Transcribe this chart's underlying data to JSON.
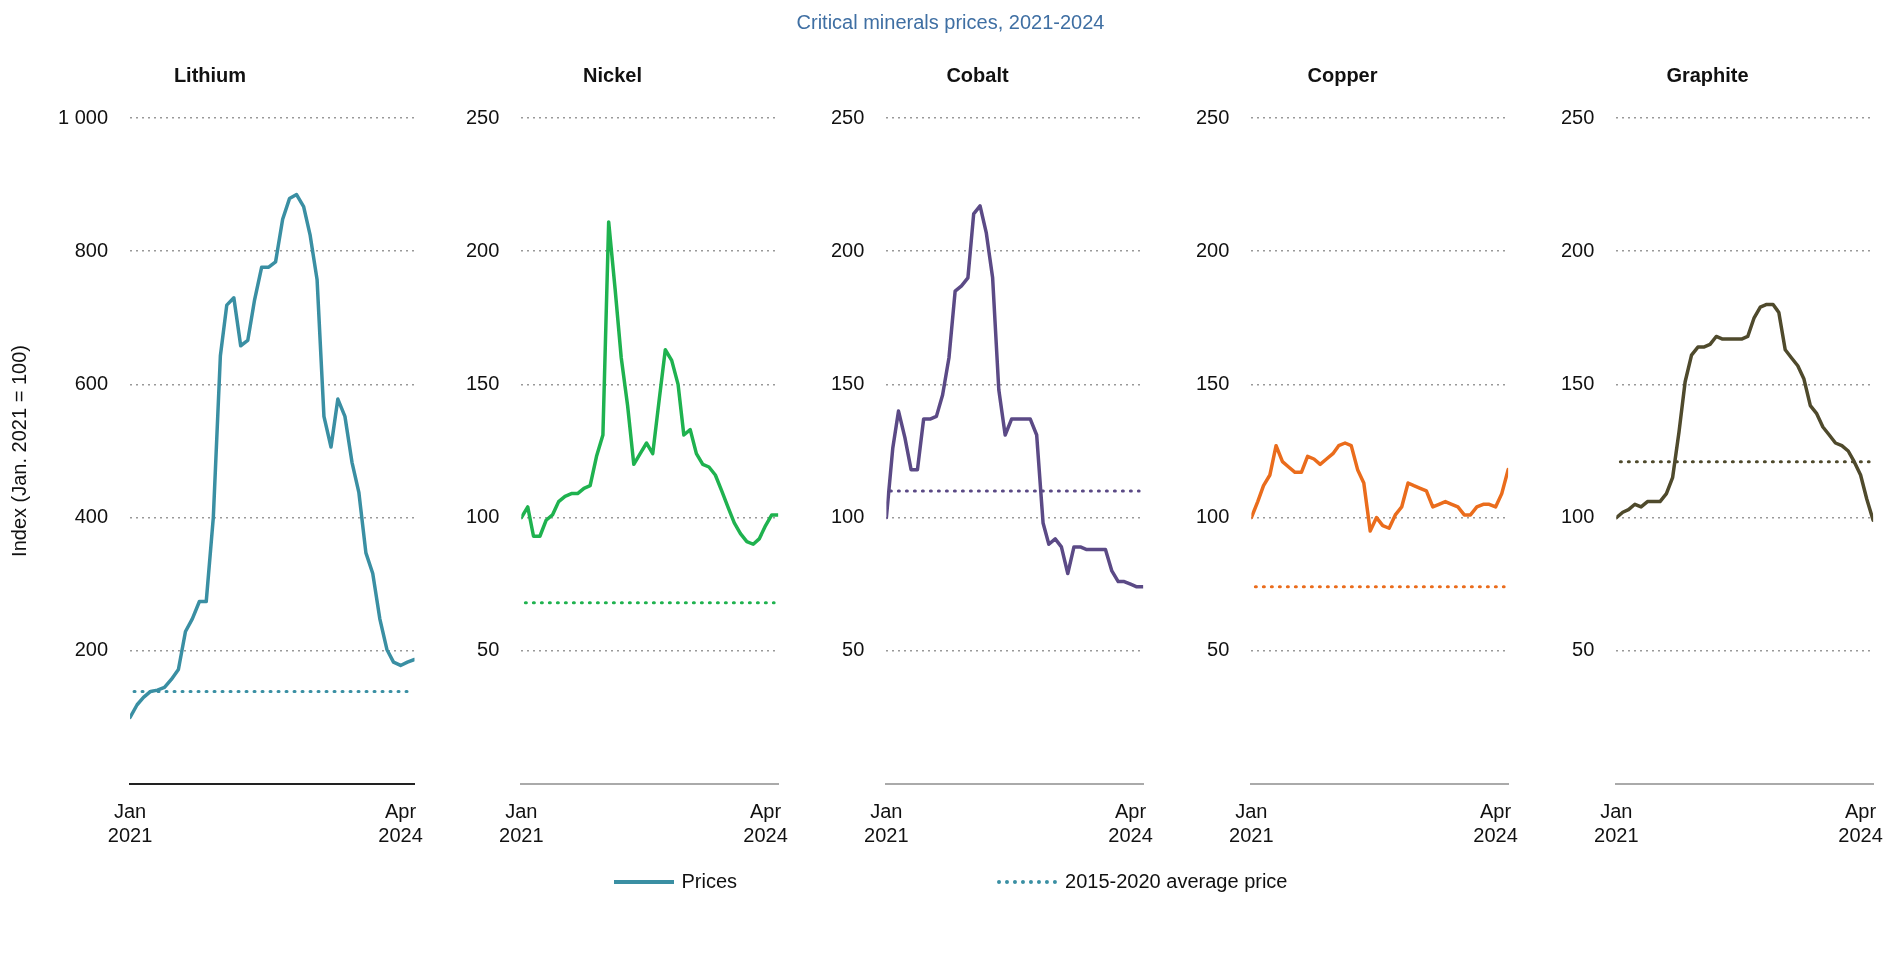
{
  "chart_data": [
    {
      "type": "line",
      "title": "Lithium",
      "ylabel": "Index (Jan. 2021 = 100)",
      "annotations": [
        "Critical minerals prices, 2021-2024"
      ],
      "legend": "bottom",
      "grid": "y",
      "marker": "none",
      "line_style": "solid",
      "x": [
        "2021-01",
        "2021-02",
        "2021-03",
        "2021-04",
        "2021-05",
        "2021-06",
        "2021-07",
        "2021-08",
        "2021-09",
        "2021-10",
        "2021-11",
        "2021-12",
        "2022-01",
        "2022-02",
        "2022-03",
        "2022-04",
        "2022-05",
        "2022-06",
        "2022-07",
        "2022-08",
        "2022-09",
        "2022-10",
        "2022-11",
        "2022-12",
        "2023-01",
        "2023-02",
        "2023-03",
        "2023-04",
        "2023-05",
        "2023-06",
        "2023-07",
        "2023-08",
        "2023-09",
        "2023-10",
        "2023-11",
        "2023-12",
        "2024-01",
        "2024-02",
        "2024-03",
        "2024-04",
        "2024-05",
        "2024-06"
      ],
      "xlim": [
        "2021-01",
        "2024-06"
      ],
      "xticks": [
        {
          "value": "2021-01",
          "label": "Jan 2021"
        },
        {
          "value": "2024-04",
          "label": "Apr 2024"
        }
      ],
      "ylim": [
        0,
        1000
      ],
      "yticks": [
        200,
        400,
        600,
        800,
        {
          "value": 1000,
          "label": "1 000"
        }
      ],
      "series": [
        {
          "name": "Prices",
          "color": "#3a8fa3",
          "values": [
            100,
            119,
            130,
            139,
            141,
            145,
            157,
            172,
            229,
            248,
            274,
            274,
            400,
            643,
            719,
            730,
            658,
            666,
            727,
            776,
            776,
            784,
            848,
            879,
            885,
            867,
            825,
            757,
            552,
            506,
            578,
            552,
            483,
            438,
            347,
            316,
            248,
            202,
            183,
            178,
            183,
            187
          ]
        }
      ],
      "ref_lines": [
        {
          "axis": "y",
          "value": 139,
          "label": "2015-2020 average price",
          "color": "#3a8fa3",
          "line_style": "dotted"
        }
      ]
    },
    {
      "type": "line",
      "title": "Nickel",
      "grid": "y",
      "marker": "none",
      "line_style": "solid",
      "x": [
        "2021-01",
        "2021-02",
        "2021-03",
        "2021-04",
        "2021-05",
        "2021-06",
        "2021-07",
        "2021-08",
        "2021-09",
        "2021-10",
        "2021-11",
        "2021-12",
        "2022-01",
        "2022-02",
        "2022-03",
        "2022-04",
        "2022-05",
        "2022-06",
        "2022-07",
        "2022-08",
        "2022-09",
        "2022-10",
        "2022-11",
        "2022-12",
        "2023-01",
        "2023-02",
        "2023-03",
        "2023-04",
        "2023-05",
        "2023-06",
        "2023-07",
        "2023-08",
        "2023-09",
        "2023-10",
        "2023-11",
        "2023-12",
        "2024-01",
        "2024-02",
        "2024-03",
        "2024-04",
        "2024-05",
        "2024-06"
      ],
      "xlim": [
        "2021-01",
        "2024-06"
      ],
      "xticks": [
        {
          "value": "2021-01",
          "label": "Jan 2021"
        },
        {
          "value": "2024-04",
          "label": "Apr 2024"
        }
      ],
      "ylim": [
        0,
        250
      ],
      "yticks": [
        50,
        100,
        150,
        200,
        250
      ],
      "series": [
        {
          "color": "#1fb24f",
          "values": [
            100,
            104,
            93,
            93,
            99,
            101,
            106,
            108,
            109,
            109,
            111,
            112,
            123,
            131,
            211,
            186,
            160,
            142,
            120,
            124,
            128,
            124,
            144,
            163,
            159,
            150,
            131,
            133,
            124,
            120,
            119,
            116,
            110,
            104,
            98,
            94,
            91,
            90,
            92,
            97,
            101,
            101
          ]
        }
      ],
      "ref_lines": [
        {
          "axis": "y",
          "value": 68,
          "color": "#1fb24f",
          "line_style": "dotted"
        }
      ]
    },
    {
      "type": "line",
      "title": "Cobalt",
      "grid": "y",
      "marker": "none",
      "line_style": "solid",
      "x": [
        "2021-01",
        "2021-02",
        "2021-03",
        "2021-04",
        "2021-05",
        "2021-06",
        "2021-07",
        "2021-08",
        "2021-09",
        "2021-10",
        "2021-11",
        "2021-12",
        "2022-01",
        "2022-02",
        "2022-03",
        "2022-04",
        "2022-05",
        "2022-06",
        "2022-07",
        "2022-08",
        "2022-09",
        "2022-10",
        "2022-11",
        "2022-12",
        "2023-01",
        "2023-02",
        "2023-03",
        "2023-04",
        "2023-05",
        "2023-06",
        "2023-07",
        "2023-08",
        "2023-09",
        "2023-10",
        "2023-11",
        "2023-12",
        "2024-01",
        "2024-02",
        "2024-03",
        "2024-04",
        "2024-05",
        "2024-06"
      ],
      "xlim": [
        "2021-01",
        "2024-06"
      ],
      "xticks": [
        {
          "value": "2021-01",
          "label": "Jan 2021"
        },
        {
          "value": "2024-04",
          "label": "Apr 2024"
        }
      ],
      "ylim": [
        0,
        250
      ],
      "yticks": [
        50,
        100,
        150,
        200,
        250
      ],
      "series": [
        {
          "color": "#5b4a86",
          "values": [
            100,
            126,
            140,
            130,
            118,
            118,
            137,
            137,
            138,
            146,
            160,
            185,
            187,
            190,
            214,
            217,
            207,
            190,
            148,
            131,
            137,
            137,
            137,
            137,
            131,
            98,
            90,
            92,
            89,
            79,
            89,
            89,
            88,
            88,
            88,
            88,
            80,
            76,
            76,
            75,
            74,
            74
          ]
        }
      ],
      "ref_lines": [
        {
          "axis": "y",
          "value": 110,
          "color": "#5b4a86",
          "line_style": "dotted"
        }
      ]
    },
    {
      "type": "line",
      "title": "Copper",
      "grid": "y",
      "marker": "none",
      "line_style": "solid",
      "x": [
        "2021-01",
        "2021-02",
        "2021-03",
        "2021-04",
        "2021-05",
        "2021-06",
        "2021-07",
        "2021-08",
        "2021-09",
        "2021-10",
        "2021-11",
        "2021-12",
        "2022-01",
        "2022-02",
        "2022-03",
        "2022-04",
        "2022-05",
        "2022-06",
        "2022-07",
        "2022-08",
        "2022-09",
        "2022-10",
        "2022-11",
        "2022-12",
        "2023-01",
        "2023-02",
        "2023-03",
        "2023-04",
        "2023-05",
        "2023-06",
        "2023-07",
        "2023-08",
        "2023-09",
        "2023-10",
        "2023-11",
        "2023-12",
        "2024-01",
        "2024-02",
        "2024-03",
        "2024-04",
        "2024-05",
        "2024-06"
      ],
      "xlim": [
        "2021-01",
        "2024-06"
      ],
      "xticks": [
        {
          "value": "2021-01",
          "label": "Jan 2021"
        },
        {
          "value": "2024-04",
          "label": "Apr 2024"
        }
      ],
      "ylim": [
        0,
        250
      ],
      "yticks": [
        50,
        100,
        150,
        200,
        250
      ],
      "series": [
        {
          "color": "#ea6c1c",
          "values": [
            100,
            106,
            112,
            116,
            127,
            121,
            119,
            117,
            117,
            123,
            122,
            120,
            122,
            124,
            127,
            128,
            127,
            118,
            113,
            95,
            100,
            97,
            96,
            101,
            104,
            113,
            112,
            111,
            110,
            104,
            105,
            106,
            105,
            104,
            101,
            101,
            104,
            105,
            105,
            104,
            109,
            118
          ]
        }
      ],
      "ref_lines": [
        {
          "axis": "y",
          "value": 74,
          "color": "#ea6c1c",
          "line_style": "dotted"
        }
      ]
    },
    {
      "type": "line",
      "title": "Graphite",
      "grid": "y",
      "marker": "none",
      "line_style": "solid",
      "x": [
        "2021-01",
        "2021-02",
        "2021-03",
        "2021-04",
        "2021-05",
        "2021-06",
        "2021-07",
        "2021-08",
        "2021-09",
        "2021-10",
        "2021-11",
        "2021-12",
        "2022-01",
        "2022-02",
        "2022-03",
        "2022-04",
        "2022-05",
        "2022-06",
        "2022-07",
        "2022-08",
        "2022-09",
        "2022-10",
        "2022-11",
        "2022-12",
        "2023-01",
        "2023-02",
        "2023-03",
        "2023-04",
        "2023-05",
        "2023-06",
        "2023-07",
        "2023-08",
        "2023-09",
        "2023-10",
        "2023-11",
        "2023-12",
        "2024-01",
        "2024-02",
        "2024-03",
        "2024-04",
        "2024-05",
        "2024-06"
      ],
      "xlim": [
        "2021-01",
        "2024-06"
      ],
      "xticks": [
        {
          "value": "2021-01",
          "label": "Jan 2021"
        },
        {
          "value": "2024-04",
          "label": "Apr 2024"
        }
      ],
      "ylim": [
        0,
        250
      ],
      "yticks": [
        50,
        100,
        150,
        200,
        250
      ],
      "series": [
        {
          "color": "#4f4a2c",
          "values": [
            100,
            102,
            103,
            105,
            104,
            106,
            106,
            106,
            109,
            115,
            132,
            151,
            161,
            164,
            164,
            165,
            168,
            167,
            167,
            167,
            167,
            168,
            175,
            179,
            180,
            180,
            177,
            163,
            160,
            157,
            152,
            142,
            139,
            134,
            131,
            128,
            127,
            125,
            121,
            116,
            107,
            99
          ]
        }
      ],
      "ref_lines": [
        {
          "axis": "y",
          "value": 121,
          "color": "#4f4a2c",
          "line_style": "dotted"
        }
      ]
    }
  ]
}
